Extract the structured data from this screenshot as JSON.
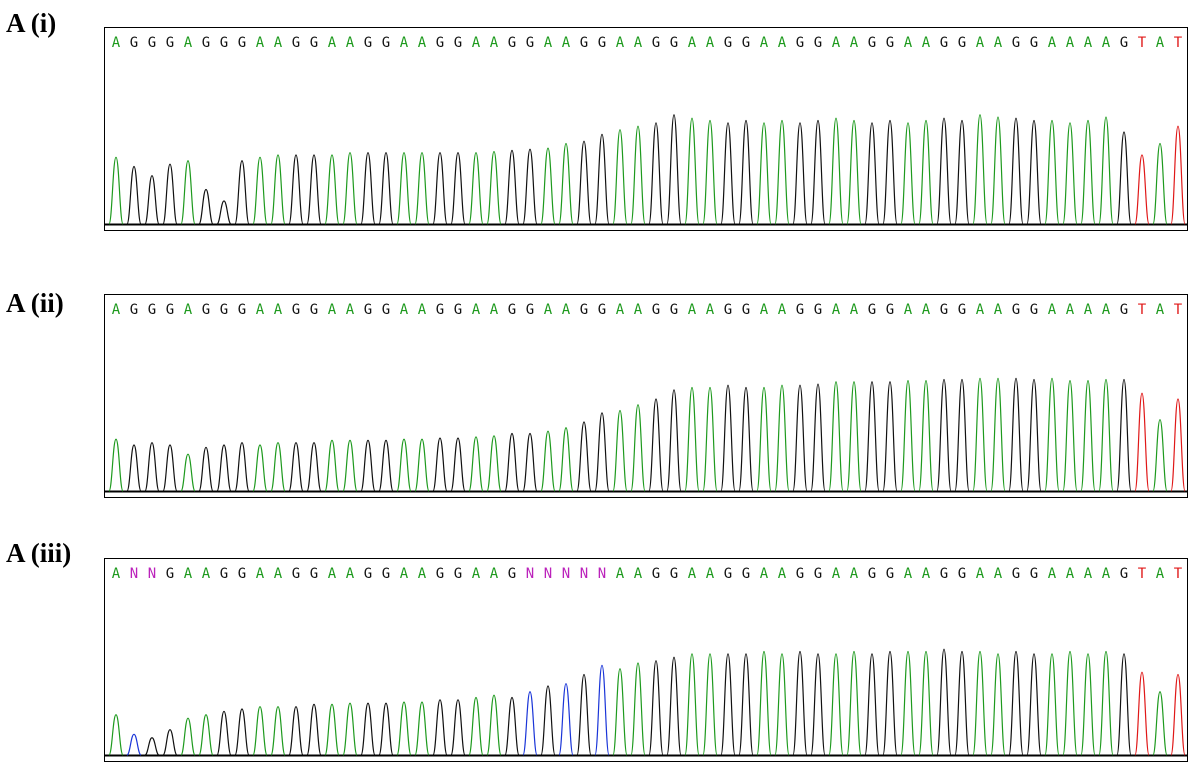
{
  "colors": {
    "A": "#1e9a1e",
    "G": "#111111",
    "T": "#e01818",
    "C": "#1a35d8",
    "N": "#bb22bb"
  },
  "chart_data": [
    {
      "type": "chromatogram",
      "panel_label": "A (i)",
      "sequence": "AGGGAGGGAAGGAAGGAAGGAAGGAAGGAAGGAAGGAAGGAAGGAAGGAAGGAAAAGTAT",
      "peak_heights": [
        0.58,
        0.5,
        0.42,
        0.52,
        0.55,
        0.3,
        0.2,
        0.55,
        0.58,
        0.6,
        0.6,
        0.6,
        0.6,
        0.62,
        0.62,
        0.62,
        0.62,
        0.62,
        0.62,
        0.62,
        0.62,
        0.63,
        0.64,
        0.65,
        0.66,
        0.7,
        0.72,
        0.78,
        0.82,
        0.85,
        0.88,
        0.95,
        0.92,
        0.9,
        0.88,
        0.9,
        0.88,
        0.9,
        0.88,
        0.9,
        0.92,
        0.9,
        0.88,
        0.9,
        0.88,
        0.9,
        0.92,
        0.9,
        0.95,
        0.93,
        0.92,
        0.9,
        0.9,
        0.88,
        0.9,
        0.93,
        0.8,
        0.6,
        0.7,
        0.85
      ]
    },
    {
      "type": "chromatogram",
      "panel_label": "A (ii)",
      "sequence": "AGGGAGGGAAGGAAGGAAGGAAGGAAGGAAGGAAGGAAGGAAGGAAGGAAGGAAAAGTAT",
      "peak_heights": [
        0.45,
        0.4,
        0.42,
        0.4,
        0.32,
        0.38,
        0.4,
        0.42,
        0.4,
        0.42,
        0.42,
        0.42,
        0.44,
        0.44,
        0.44,
        0.44,
        0.45,
        0.45,
        0.46,
        0.46,
        0.47,
        0.48,
        0.5,
        0.5,
        0.52,
        0.55,
        0.6,
        0.68,
        0.7,
        0.75,
        0.8,
        0.88,
        0.9,
        0.9,
        0.92,
        0.9,
        0.9,
        0.92,
        0.92,
        0.93,
        0.95,
        0.95,
        0.95,
        0.95,
        0.96,
        0.96,
        0.97,
        0.97,
        0.98,
        0.98,
        0.98,
        0.97,
        0.98,
        0.96,
        0.96,
        0.97,
        0.97,
        0.85,
        0.62,
        0.8
      ]
    },
    {
      "type": "chromatogram",
      "panel_label": "A (iii)",
      "sequence": "ANNGAAGGAAGGAAGGAAGGAAGNNNNNAAGGAAGGAAGGAAGGAAGGAAGGAAAAGTAT",
      "peak_heights": [
        0.35,
        0.18,
        0.15,
        0.22,
        0.32,
        0.35,
        0.38,
        0.4,
        0.42,
        0.42,
        0.42,
        0.44,
        0.44,
        0.45,
        0.45,
        0.45,
        0.46,
        0.46,
        0.48,
        0.48,
        0.5,
        0.52,
        0.5,
        0.55,
        0.6,
        0.62,
        0.7,
        0.78,
        0.75,
        0.8,
        0.82,
        0.85,
        0.88,
        0.88,
        0.88,
        0.88,
        0.9,
        0.88,
        0.9,
        0.88,
        0.88,
        0.9,
        0.88,
        0.9,
        0.9,
        0.9,
        0.92,
        0.9,
        0.9,
        0.88,
        0.9,
        0.88,
        0.88,
        0.9,
        0.88,
        0.9,
        0.88,
        0.72,
        0.55,
        0.7
      ]
    }
  ]
}
